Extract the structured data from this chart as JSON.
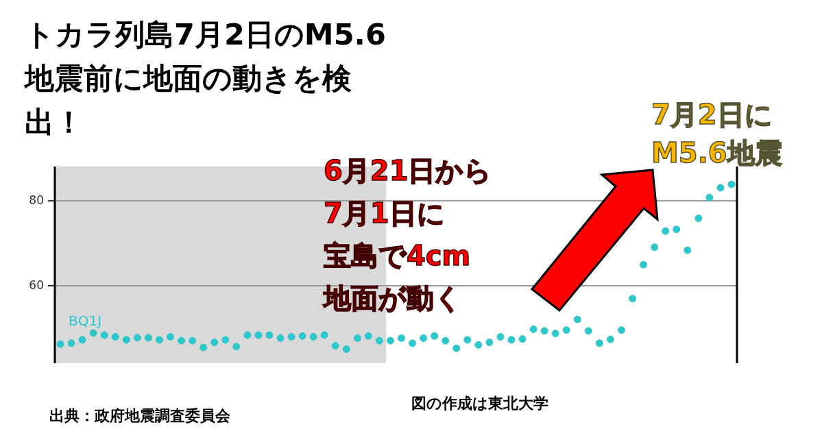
{
  "chart_data": {
    "type": "scatter",
    "title": "トカラ列島7月2日のM5.6地震前に地面の動きを検出！",
    "annotations": [
      "6月21日から",
      "7月1日に",
      "宝島で4cm",
      "地面が動く",
      "7月2日に",
      "M5.6地震",
      "出典：政府地震調査委員会",
      "図の作成は東北大学"
    ],
    "categories": [
      null,
      null,
      null,
      null,
      null,
      null,
      null,
      null,
      null,
      null,
      null,
      null,
      null,
      null,
      null,
      null,
      null,
      null,
      null,
      null,
      null,
      null,
      null,
      null,
      null,
      null,
      null,
      null,
      null,
      null,
      null,
      null,
      null,
      null,
      null,
      null,
      null,
      null,
      null,
      null,
      null,
      null,
      null,
      null,
      null,
      null,
      null,
      null,
      null,
      null,
      null,
      null,
      null,
      null,
      null,
      null,
      null,
      null,
      null,
      null,
      null,
      null
    ],
    "series": [
      {
        "name": "BQ1J",
        "color": "#2ec7cc",
        "values": [
          46.3,
          46.5,
          47.3,
          48.9,
          48.4,
          48.0,
          47.3,
          47.8,
          47.8,
          47.3,
          48.0,
          47.1,
          47.1,
          45.5,
          46.7,
          47.3,
          45.7,
          48.4,
          48.4,
          48.4,
          47.7,
          48.0,
          48.2,
          48.0,
          48.4,
          45.9,
          45.1,
          47.7,
          48.2,
          47.1,
          47.1,
          47.7,
          46.5,
          47.7,
          48.2,
          47.1,
          45.3,
          47.3,
          46.1,
          46.7,
          48.0,
          47.3,
          47.5,
          49.8,
          49.4,
          48.8,
          49.6,
          52.1,
          49.4,
          46.5,
          47.4,
          49.6,
          57.0,
          65.0,
          69.1,
          72.9,
          73.3,
          68.4,
          75.9,
          80.8,
          83.1,
          83.9
        ]
      }
    ],
    "ylim": [
      41.8,
      88.1
    ],
    "yticks": [
      60,
      80
    ],
    "grid": "y",
    "marker": "circle",
    "legend": false
  }
}
